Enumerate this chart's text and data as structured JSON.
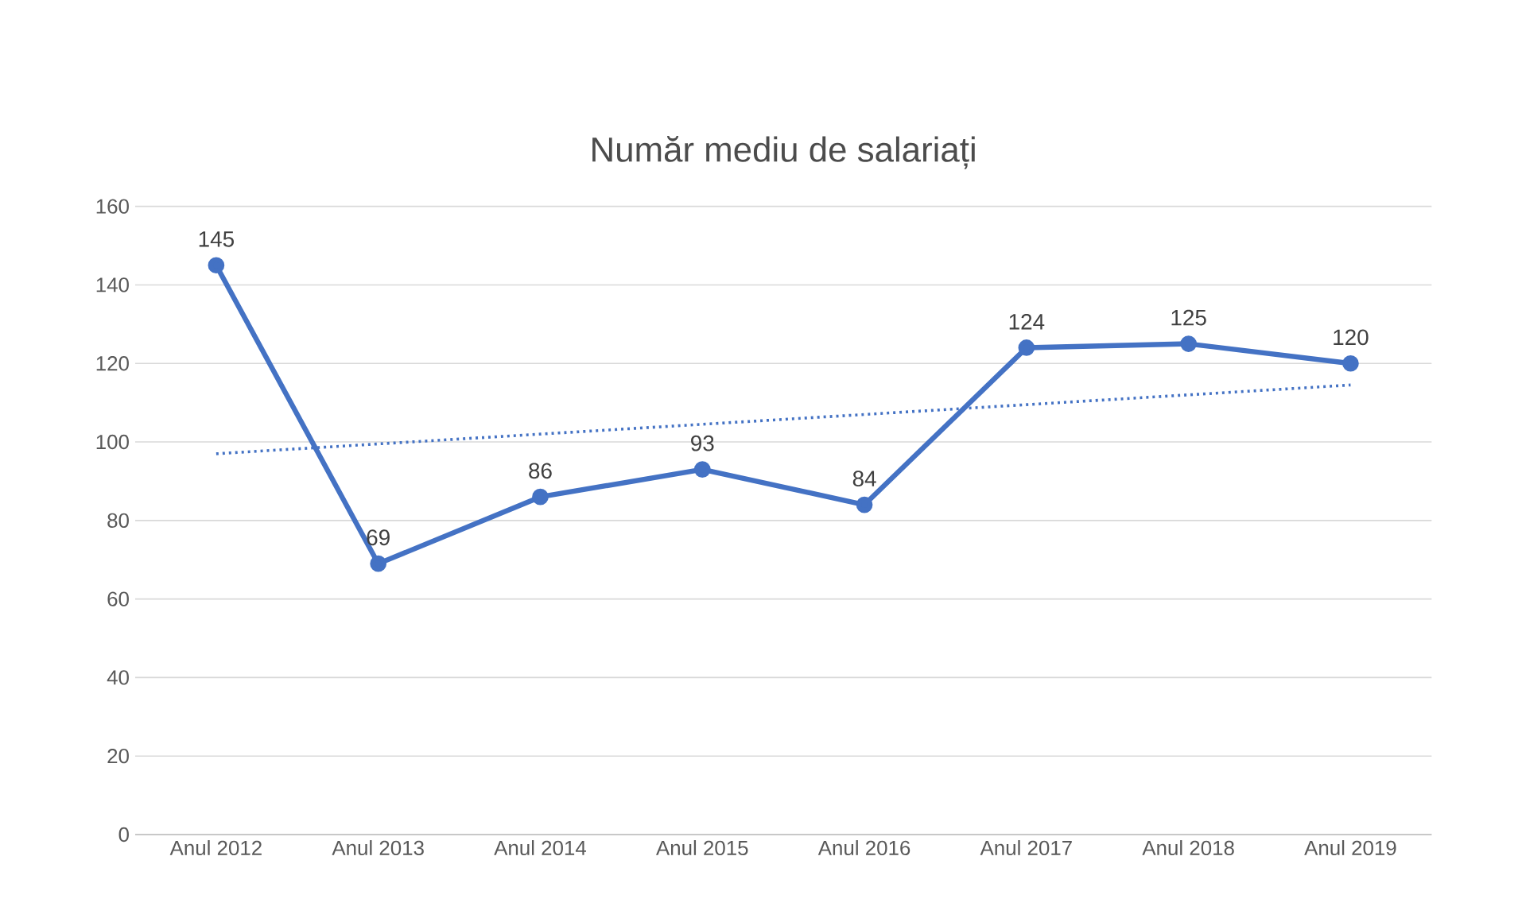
{
  "chart_data": {
    "type": "line",
    "title": "Număr mediu de salariați",
    "categories": [
      "Anul 2012",
      "Anul 2013",
      "Anul 2014",
      "Anul 2015",
      "Anul 2016",
      "Anul 2017",
      "Anul 2018",
      "Anul 2019"
    ],
    "series": [
      {
        "color": "#4472c4",
        "values": [
          145,
          69,
          86,
          93,
          84,
          124,
          125,
          120
        ],
        "marker": "circle",
        "line_style": "solid",
        "value_labels": [
          "145",
          "69",
          "86",
          "93",
          "84",
          "124",
          "125",
          "120"
        ]
      },
      {
        "color": "#4472c4",
        "values": [
          97,
          99.5,
          102,
          104.5,
          107,
          109.5,
          112,
          114.5
        ],
        "marker": "none",
        "line_style": "dotted"
      }
    ],
    "ylim": [
      0,
      160
    ],
    "yticks": [
      0,
      20,
      40,
      60,
      80,
      100,
      120,
      140,
      160
    ],
    "grid": "y",
    "legend": false
  }
}
